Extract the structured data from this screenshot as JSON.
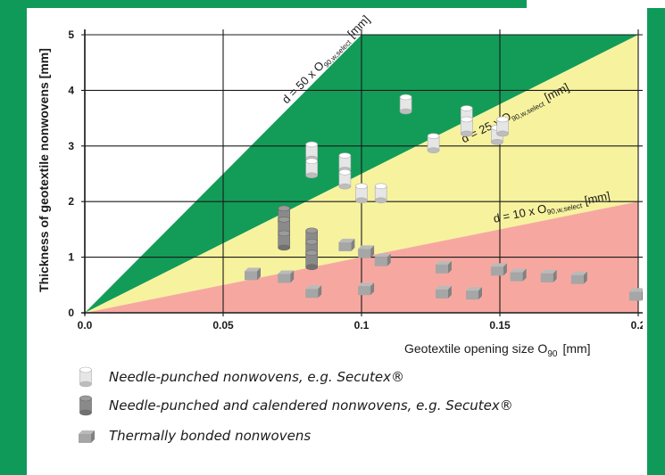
{
  "chart_data": {
    "type": "scatter",
    "xlabel": "Geotextile opening size O",
    "xlabel_sub": "90",
    "xlabel_unit": "[mm]",
    "ylabel": "Thickness of geotextile nonwovens [mm]",
    "xlim": [
      0,
      0.2
    ],
    "ylim": [
      0,
      5
    ],
    "x_ticks": [
      "0.0",
      "0.05",
      "0.1",
      "0.15",
      "0.2"
    ],
    "y_ticks": [
      "0",
      "1",
      "2",
      "3",
      "4",
      "5"
    ],
    "grid": true,
    "zones": [
      {
        "name": "green",
        "color": "#139c58",
        "upper_slope": 50,
        "lower_slope": 25
      },
      {
        "name": "yellow",
        "color": "#f7f29e",
        "upper_slope": 25,
        "lower_slope": 10
      },
      {
        "name": "pink",
        "color": "#f6a8a0",
        "upper_slope": 10,
        "lower_slope": 0
      }
    ],
    "line_labels": [
      {
        "main": "d = 50 x O",
        "sub": "90,w,select",
        "unit": "[mm]",
        "color": "#1a1a1a",
        "size": 13,
        "anchor_x": 0.073,
        "anchor_y": 3.75,
        "slope": 50
      },
      {
        "main": "d = 25 x O",
        "sub": "90,w,select",
        "unit": "[mm]",
        "color": "#1a1a1a",
        "size": 13,
        "anchor_x": 0.137,
        "anchor_y": 3.05,
        "slope": 25
      },
      {
        "main": "d = 10 x O",
        "sub": "90,w,select",
        "unit": "[mm]",
        "color": "#1a1a1a",
        "size": 13,
        "anchor_x": 0.148,
        "anchor_y": 1.62,
        "slope": 10
      }
    ],
    "series": [
      {
        "name": "Needle-punched nonwovens, e.g. Secutex®",
        "marker": "cylinder",
        "color": "#e6e6e6",
        "points": [
          [
            0.082,
            2.9
          ],
          [
            0.082,
            2.6
          ],
          [
            0.094,
            2.7
          ],
          [
            0.094,
            2.4
          ],
          [
            0.1,
            2.15
          ],
          [
            0.107,
            2.15
          ],
          [
            0.116,
            3.75
          ],
          [
            0.126,
            3.05
          ],
          [
            0.138,
            3.55
          ],
          [
            0.138,
            3.35
          ],
          [
            0.149,
            3.2
          ],
          [
            0.151,
            3.35
          ]
        ]
      },
      {
        "name": "Needle-punched and calendered nonwovens, e.g. Secutex®",
        "marker": "cylinder",
        "color": "#8a8a8a",
        "points": [
          [
            0.072,
            1.75
          ],
          [
            0.072,
            1.55
          ],
          [
            0.072,
            1.3
          ],
          [
            0.082,
            1.35
          ],
          [
            0.082,
            1.15
          ],
          [
            0.082,
            0.95
          ]
        ]
      },
      {
        "name": "Thermally bonded nonwovens",
        "marker": "cube",
        "color": "#a6a6a6",
        "points": [
          [
            0.06,
            0.7
          ],
          [
            0.072,
            0.65
          ],
          [
            0.082,
            0.38
          ],
          [
            0.094,
            1.22
          ],
          [
            0.101,
            1.1
          ],
          [
            0.101,
            0.43
          ],
          [
            0.107,
            0.95
          ],
          [
            0.129,
            0.82
          ],
          [
            0.129,
            0.37
          ],
          [
            0.14,
            0.35
          ],
          [
            0.149,
            0.78
          ],
          [
            0.156,
            0.68
          ],
          [
            0.167,
            0.66
          ],
          [
            0.178,
            0.63
          ],
          [
            0.199,
            0.33
          ]
        ]
      }
    ]
  },
  "legend": [
    {
      "label": "Needle-punched nonwovens, e.g. Secutex®",
      "icon": "light-cylinder-icon"
    },
    {
      "label": "Needle-punched and calendered nonwovens, e.g. Secutex®",
      "icon": "dark-cylinder-icon"
    },
    {
      "label": "Thermally bonded nonwovens",
      "icon": "cube-icon"
    }
  ],
  "colors": {
    "frame_green": "#109a5a",
    "grid": "#1a1a1a"
  }
}
